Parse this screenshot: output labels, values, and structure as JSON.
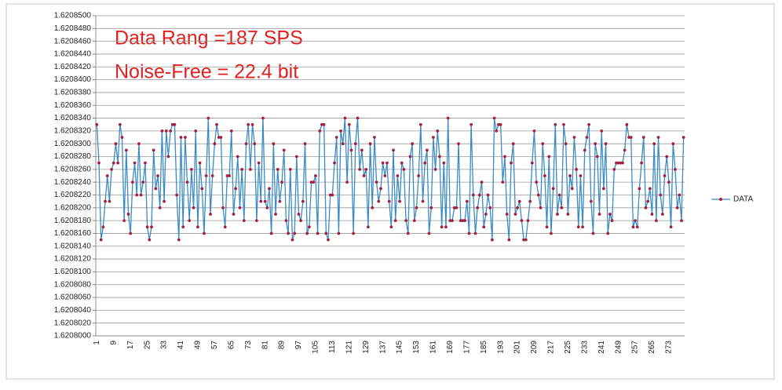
{
  "chart_data": {
    "type": "line",
    "annotations": [
      "Data Rang =187 SPS",
      "Noise-Free = 22.4 bit"
    ],
    "categories": [
      1,
      null,
      null,
      null,
      null,
      null,
      null,
      null,
      9,
      null,
      null,
      null,
      null,
      null,
      null,
      null,
      17,
      null,
      null,
      null,
      null,
      null,
      null,
      null,
      25,
      null,
      null,
      null,
      null,
      null,
      null,
      null,
      33,
      null,
      null,
      null,
      null,
      null,
      null,
      null,
      41,
      null,
      null,
      null,
      null,
      null,
      null,
      null,
      49,
      null,
      null,
      null,
      null,
      null,
      null,
      null,
      57,
      null,
      null,
      null,
      null,
      null,
      null,
      null,
      65,
      null,
      null,
      null,
      null,
      null,
      null,
      null,
      73,
      null,
      null,
      null,
      null,
      null,
      null,
      null,
      81,
      null,
      null,
      null,
      null,
      null,
      null,
      null,
      89,
      null,
      null,
      null,
      null,
      null,
      null,
      null,
      97,
      null,
      null,
      null,
      null,
      null,
      null,
      null,
      105,
      null,
      null,
      null,
      null,
      null,
      null,
      null,
      113,
      null,
      null,
      null,
      null,
      null,
      null,
      null,
      121,
      null,
      null,
      null,
      null,
      null,
      null,
      null,
      129,
      null,
      null,
      null,
      null,
      null,
      null,
      null,
      137,
      null,
      null,
      null,
      null,
      null,
      null,
      null,
      145,
      null,
      null,
      null,
      null,
      null,
      null,
      null,
      153,
      null,
      null,
      null,
      null,
      null,
      null,
      null,
      161,
      null,
      null,
      null,
      null,
      null,
      null,
      null,
      169,
      null,
      null,
      null,
      null,
      null,
      null,
      null,
      177,
      null,
      null,
      null,
      null,
      null,
      null,
      null,
      185,
      null,
      null,
      null,
      null,
      null,
      null,
      null,
      193,
      null,
      null,
      null,
      null,
      null,
      null,
      null,
      201,
      null,
      null,
      null,
      null,
      null,
      null,
      null,
      209,
      null,
      null,
      null,
      null,
      null,
      null,
      null,
      217,
      null,
      null,
      null,
      null,
      null,
      null,
      null,
      225,
      null,
      null,
      null,
      null,
      null,
      null,
      null,
      233,
      null,
      null,
      null,
      null,
      null,
      null,
      null,
      241,
      null,
      null,
      null,
      null,
      null,
      null,
      null,
      249,
      null,
      null,
      null,
      null,
      null,
      null,
      null,
      257,
      null,
      null,
      null,
      null,
      null,
      null,
      null,
      265,
      null,
      null,
      null,
      null,
      null,
      null,
      null,
      273,
      null,
      null,
      null,
      null,
      null,
      null,
      null
    ],
    "series": [
      {
        "name": "DATA",
        "color": "#3b8bc4",
        "marker_color": "#a3233d",
        "values": [
          1.620833,
          1.620827,
          1.620815,
          1.620817,
          1.620821,
          1.620825,
          1.620821,
          1.620826,
          1.620827,
          1.62083,
          1.620827,
          1.620833,
          1.620831,
          1.620818,
          1.620829,
          1.620819,
          1.620816,
          1.620824,
          1.620827,
          1.620822,
          1.62083,
          1.620822,
          1.620824,
          1.620827,
          1.620817,
          1.620815,
          1.620817,
          1.620829,
          1.620823,
          1.620825,
          1.62082,
          1.620832,
          1.620821,
          1.620832,
          1.620828,
          1.620832,
          1.620833,
          1.620833,
          1.620822,
          1.620815,
          1.620831,
          1.620817,
          1.620831,
          1.620824,
          1.620818,
          1.620826,
          1.62082,
          1.620832,
          1.620817,
          1.620827,
          1.620823,
          1.620816,
          1.620825,
          1.620834,
          1.620819,
          1.620825,
          1.62083,
          1.620833,
          1.620831,
          1.620831,
          1.62082,
          1.620817,
          1.620825,
          1.620825,
          1.620832,
          1.620819,
          1.620823,
          1.620828,
          1.62082,
          1.620826,
          1.620818,
          1.62083,
          1.620833,
          1.620826,
          1.620833,
          1.62083,
          1.620818,
          1.620827,
          1.620821,
          1.620834,
          1.620821,
          1.62082,
          1.620823,
          1.620816,
          1.62083,
          1.620819,
          1.620826,
          1.620821,
          1.620824,
          1.620829,
          1.620818,
          1.620816,
          1.620826,
          1.620815,
          1.620816,
          1.620828,
          1.620819,
          1.620818,
          1.620821,
          1.62083,
          1.620816,
          1.620817,
          1.620824,
          1.620824,
          1.620825,
          1.620816,
          1.620832,
          1.620833,
          1.620833,
          1.620816,
          1.620815,
          1.620822,
          1.620822,
          1.620827,
          1.620831,
          1.620816,
          1.620832,
          1.62083,
          1.620834,
          1.620824,
          1.620833,
          1.620829,
          1.620816,
          1.62083,
          1.620834,
          1.620826,
          1.620829,
          1.620825,
          1.620826,
          1.620817,
          1.62083,
          1.62082,
          1.620831,
          1.620824,
          1.620821,
          1.620823,
          1.620827,
          1.620825,
          1.620827,
          1.620821,
          1.620817,
          1.620829,
          1.620818,
          1.620825,
          1.620821,
          1.620827,
          1.620826,
          1.620818,
          1.620816,
          1.620828,
          1.62083,
          1.620818,
          1.62082,
          1.620825,
          1.620833,
          1.620821,
          1.620827,
          1.620829,
          1.620816,
          1.62082,
          1.620831,
          1.620826,
          1.620832,
          1.620828,
          1.620817,
          1.620827,
          1.620817,
          1.620834,
          1.620818,
          1.620818,
          1.62082,
          1.62082,
          1.62083,
          1.620818,
          1.620818,
          1.620818,
          1.620821,
          1.620816,
          1.620833,
          1.620822,
          1.620816,
          1.62082,
          1.620822,
          1.620824,
          1.620817,
          1.620819,
          1.620822,
          1.62082,
          1.620815,
          1.620834,
          1.620832,
          1.620833,
          1.620833,
          1.620824,
          1.620828,
          1.620819,
          1.620815,
          1.620827,
          1.62083,
          1.620819,
          1.62082,
          1.620821,
          1.620818,
          1.620815,
          1.620815,
          1.620818,
          1.620821,
          1.620827,
          1.620832,
          1.620824,
          1.620822,
          1.62082,
          1.62083,
          1.620825,
          1.620817,
          1.620828,
          1.620816,
          1.620823,
          1.620833,
          1.620819,
          1.620822,
          1.62082,
          1.620833,
          1.62083,
          1.620819,
          1.620825,
          1.620823,
          1.620831,
          1.620826,
          1.620817,
          1.620825,
          1.620817,
          1.620829,
          1.620831,
          1.620833,
          1.620821,
          1.620816,
          1.62083,
          1.620828,
          1.620819,
          1.620832,
          1.620823,
          1.62083,
          1.620816,
          1.620819,
          1.620818,
          1.620826,
          1.620827,
          1.620827,
          1.620827,
          1.620827,
          1.620829,
          1.620833,
          1.620831,
          1.620831,
          1.620817,
          1.620818,
          1.620817,
          1.620823,
          1.620827,
          1.620831,
          1.62082,
          1.620821,
          1.620823,
          1.620819,
          1.62083,
          1.620818,
          1.620831,
          1.620822,
          1.620819,
          1.620825,
          1.620828,
          1.620824,
          1.620817,
          1.62083,
          1.620826,
          1.62082,
          1.620822,
          1.620818,
          1.620831
        ]
      }
    ],
    "ylim": [
      1.6208,
      1.62085
    ],
    "yticks": [
      {
        "value": 1.6208,
        "label": "1.6208000"
      },
      {
        "value": 1.620802,
        "label": "1.6208020"
      },
      {
        "value": 1.620804,
        "label": "1.6208040"
      },
      {
        "value": 1.620806,
        "label": "1.6208060"
      },
      {
        "value": 1.620808,
        "label": "1.6208080"
      },
      {
        "value": 1.62081,
        "label": "1.6208100"
      },
      {
        "value": 1.620812,
        "label": "1.6208120"
      },
      {
        "value": 1.620814,
        "label": "1.6208140"
      },
      {
        "value": 1.620816,
        "label": "1.6208160"
      },
      {
        "value": 1.620818,
        "label": "1.6208180"
      },
      {
        "value": 1.62082,
        "label": "1.6208200"
      },
      {
        "value": 1.620822,
        "label": "1.6208220"
      },
      {
        "value": 1.620824,
        "label": "1.6208240"
      },
      {
        "value": 1.620826,
        "label": "1.6208260"
      },
      {
        "value": 1.620828,
        "label": "1.6208280"
      },
      {
        "value": 1.62083,
        "label": "1.6208300"
      },
      {
        "value": 1.620832,
        "label": "1.6208320"
      },
      {
        "value": 1.620834,
        "label": "1.6208340"
      },
      {
        "value": 1.620836,
        "label": "1.6208360"
      },
      {
        "value": 1.620838,
        "label": "1.6208380"
      },
      {
        "value": 1.62084,
        "label": "1.6208400"
      },
      {
        "value": 1.620842,
        "label": "1.6208420"
      },
      {
        "value": 1.620844,
        "label": "1.6208440"
      },
      {
        "value": 1.620846,
        "label": "1.6208460"
      },
      {
        "value": 1.620848,
        "label": "1.6208480"
      },
      {
        "value": 1.62085,
        "label": "1.6208500"
      }
    ],
    "grid": true,
    "legend": "right"
  }
}
